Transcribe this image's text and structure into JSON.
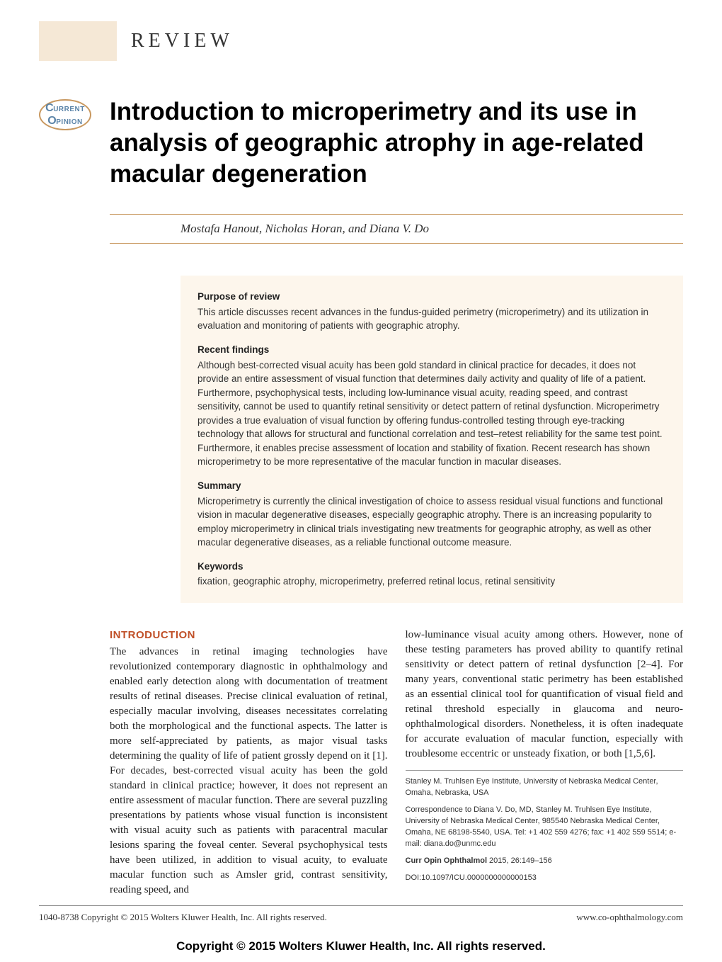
{
  "header": {
    "review_label": "REVIEW",
    "logo_line1": "URRENT",
    "logo_line2": "PINION"
  },
  "article": {
    "title": "Introduction to microperimetry and its use in analysis of geographic atrophy in age-related macular degeneration",
    "authors": "Mostafa Hanout, Nicholas Horan, and Diana V. Do"
  },
  "abstract": {
    "purpose_heading": "Purpose of review",
    "purpose_text": "This article discusses recent advances in the fundus-guided perimetry (microperimetry) and its utilization in evaluation and monitoring of patients with geographic atrophy.",
    "findings_heading": "Recent findings",
    "findings_text": "Although best-corrected visual acuity has been gold standard in clinical practice for decades, it does not provide an entire assessment of visual function that determines daily activity and quality of life of a patient. Furthermore, psychophysical tests, including low-luminance visual acuity, reading speed, and contrast sensitivity, cannot be used to quantify retinal sensitivity or detect pattern of retinal dysfunction. Microperimetry provides a true evaluation of visual function by offering fundus-controlled testing through eye-tracking technology that allows for structural and functional correlation and test–retest reliability for the same test point. Furthermore, it enables precise assessment of location and stability of fixation. Recent research has shown microperimetry to be more representative of the macular function in macular diseases.",
    "summary_heading": "Summary",
    "summary_text": "Microperimetry is currently the clinical investigation of choice to assess residual visual functions and functional vision in macular degenerative diseases, especially geographic atrophy. There is an increasing popularity to employ microperimetry in clinical trials investigating new treatments for geographic atrophy, as well as other macular degenerative diseases, as a reliable functional outcome measure.",
    "keywords_heading": "Keywords",
    "keywords_text": "fixation, geographic atrophy, microperimetry, preferred retinal locus, retinal sensitivity"
  },
  "body": {
    "intro_heading": "INTRODUCTION",
    "col_left": "The advances in retinal imaging technologies have revolutionized contemporary diagnostic in ophthalmology and enabled early detection along with documentation of treatment results of retinal diseases. Precise clinical evaluation of retinal, especially macular involving, diseases necessitates correlating both the morphological and the functional aspects. The latter is more self-appreciated by patients, as major visual tasks determining the quality of life of patient grossly depend on it [1]. For decades, best-corrected visual acuity has been the gold standard in clinical practice; however, it does not represent an entire assessment of macular function. There are several puzzling presentations by patients whose visual function is inconsistent with visual acuity such as patients with paracentral macular lesions sparing the foveal center. Several psychophysical tests have been utilized, in addition to visual acuity, to evaluate macular function such as Amsler grid, contrast sensitivity, reading speed, and",
    "col_right": "low-luminance visual acuity among others. However, none of these testing parameters has proved ability to quantify retinal sensitivity or detect pattern of retinal dysfunction [2–4]. For many years, conventional static perimetry has been established as an essential clinical tool for quantification of visual field and retinal threshold especially in glaucoma and neuro-ophthalmological disorders. Nonetheless, it is often inadequate for accurate evaluation of macular function, especially with troublesome eccentric or unsteady fixation, or both [1,5,6]."
  },
  "affiliation": {
    "institution": "Stanley M. Truhlsen Eye Institute, University of Nebraska Medical Center, Omaha, Nebraska, USA",
    "correspondence": "Correspondence to Diana V. Do, MD, Stanley M. Truhlsen Eye Institute, University of Nebraska Medical Center, 985540 Nebraska Medical Center, Omaha, NE 68198-5540, USA. Tel: +1 402 559 4276; fax: +1 402 559 5514; e-mail: diana.do@unmc.edu",
    "citation_label": "Curr Opin Ophthalmol",
    "citation_text": " 2015, 26:149–156",
    "doi": "DOI:10.1097/ICU.0000000000000153"
  },
  "footer": {
    "copyright_left": "1040-8738 Copyright © 2015 Wolters Kluwer Health, Inc. All rights reserved.",
    "url_right": "www.co-ophthalmology.com",
    "banner": "Copyright © 2015 Wolters Kluwer Health, Inc. All rights reserved."
  },
  "colors": {
    "accent_tan": "#f5e8d6",
    "abstract_bg": "#fdf6ec",
    "divider_gold": "#c8985f",
    "heading_orange": "#c05028",
    "logo_blue": "#5b84a8"
  }
}
